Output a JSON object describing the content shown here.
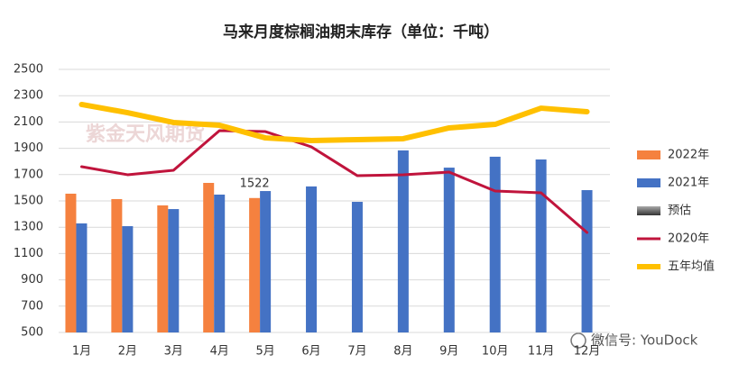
{
  "chart_data": {
    "type": "bar",
    "title": "马来月度棕榈油期末库存（单位：千吨）",
    "categories": [
      "1月",
      "2月",
      "3月",
      "4月",
      "5月",
      "6月",
      "7月",
      "8月",
      "9月",
      "10月",
      "11月",
      "12月"
    ],
    "series": [
      {
        "name": "2022年",
        "type": "bar",
        "color": "#f5813f",
        "values": [
          1555,
          1514,
          1466,
          1637,
          1522,
          null,
          null,
          null,
          null,
          null,
          null,
          null
        ]
      },
      {
        "name": "2021年",
        "type": "bar",
        "color": "#4472c4",
        "values": [
          1329,
          1308,
          1438,
          1548,
          1575,
          1610,
          1493,
          1884,
          1753,
          1836,
          1815,
          1582
        ]
      },
      {
        "name": "预估",
        "type": "bar",
        "color": "#555555",
        "values": [
          null,
          null,
          null,
          null,
          null,
          null,
          null,
          null,
          null,
          null,
          null,
          null
        ]
      },
      {
        "name": "2020年",
        "type": "line",
        "color": "#c0143c",
        "values": [
          1760,
          1699,
          1733,
          2034,
          2027,
          1911,
          1692,
          1699,
          1719,
          1575,
          1562,
          1260
        ]
      },
      {
        "name": "五年均值",
        "type": "line",
        "color": "#ffc000",
        "values": [
          2233,
          2171,
          2096,
          2075,
          1979,
          1959,
          1966,
          1973,
          2055,
          2082,
          2205,
          2178
        ]
      }
    ],
    "data_label": {
      "series": 0,
      "index": 4
    },
    "ylim": [
      500,
      2500
    ],
    "yticks": [
      500,
      700,
      900,
      1100,
      1300,
      1500,
      1700,
      1900,
      2100,
      2300,
      2500
    ],
    "grid": true,
    "legend": "right",
    "watermark": [
      "紫金天风期货",
      "微信号: YouDock"
    ]
  }
}
